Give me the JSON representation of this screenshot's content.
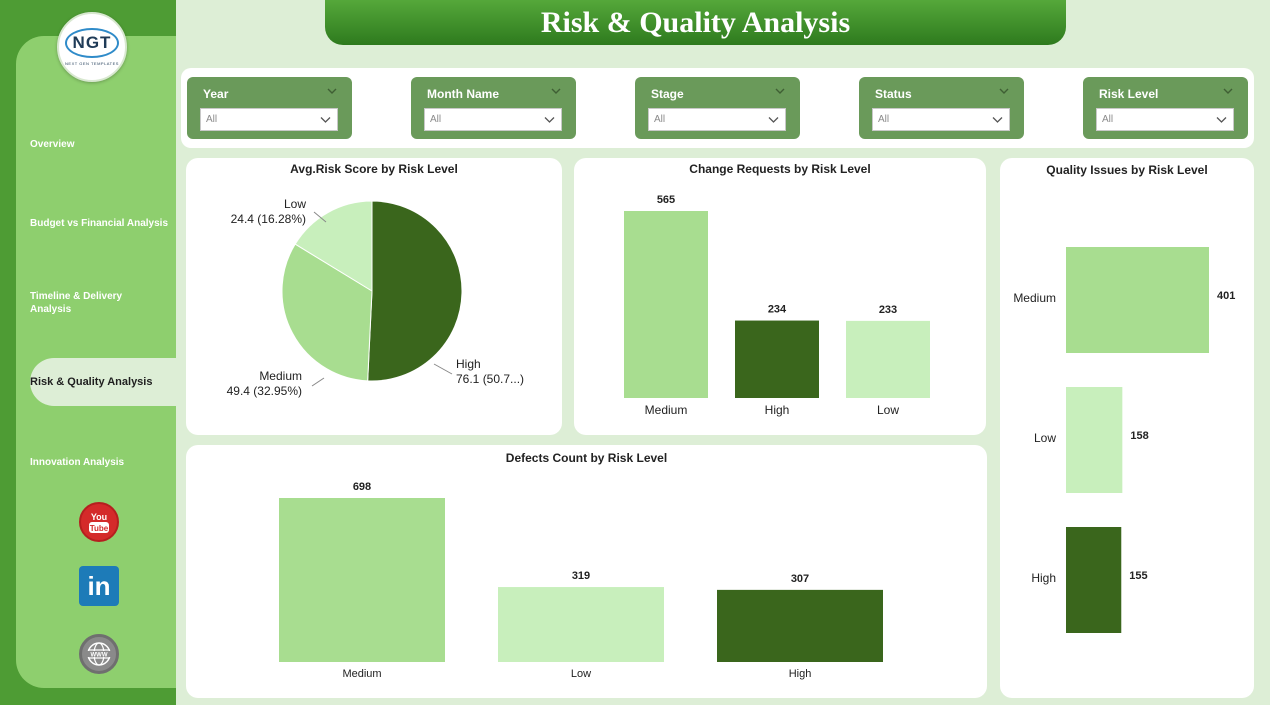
{
  "header": {
    "title": "Risk & Quality Analysis"
  },
  "logo": {
    "mark": "NGT",
    "subtitle": "NEXT GEN TEMPLATES"
  },
  "sidebar": {
    "items": [
      {
        "label": "Overview"
      },
      {
        "label": "Budget vs Financial Analysis"
      },
      {
        "label": "Timeline & Delivery Analysis"
      },
      {
        "label": "Risk & Quality Analysis"
      },
      {
        "label": "Innovation Analysis"
      }
    ],
    "social": [
      {
        "icon": "youtube-icon",
        "text": "You Tube"
      },
      {
        "icon": "linkedin-icon",
        "text": "in"
      },
      {
        "icon": "website-globe-icon",
        "text": "WWW"
      }
    ]
  },
  "filters": [
    {
      "label": "Year",
      "value": "All"
    },
    {
      "label": "Month Name",
      "value": "All"
    },
    {
      "label": "Stage",
      "value": "All"
    },
    {
      "label": "Status",
      "value": "All"
    },
    {
      "label": "Risk Level",
      "value": "All"
    }
  ],
  "colors": {
    "high": "#3a661c",
    "medium": "#a8dd90",
    "low": "#c8efbc",
    "accent": "#4e9c34"
  },
  "chart_data": [
    {
      "id": "avg-risk",
      "type": "pie",
      "title": "Avg.Risk Score by Risk Level",
      "slices": [
        {
          "name": "High",
          "value": 76.1,
          "label": "76.1 (50.7...)"
        },
        {
          "name": "Medium",
          "value": 49.4,
          "label": "49.4 (32.95%)"
        },
        {
          "name": "Low",
          "value": 24.4,
          "label": "24.4 (16.28%)"
        }
      ]
    },
    {
      "id": "change-requests",
      "type": "bar",
      "title": "Change Requests by Risk Level",
      "categories": [
        "Medium",
        "High",
        "Low"
      ],
      "values": [
        565,
        234,
        233
      ]
    },
    {
      "id": "quality-issues",
      "type": "bar",
      "orientation": "horizontal",
      "title": "Quality Issues by Risk Level",
      "categories": [
        "Medium",
        "Low",
        "High"
      ],
      "values": [
        401,
        158,
        155
      ]
    },
    {
      "id": "defects",
      "type": "bar",
      "title": "Defects Count by Risk Level",
      "categories": [
        "Medium",
        "Low",
        "High"
      ],
      "values": [
        698,
        319,
        307
      ]
    }
  ]
}
